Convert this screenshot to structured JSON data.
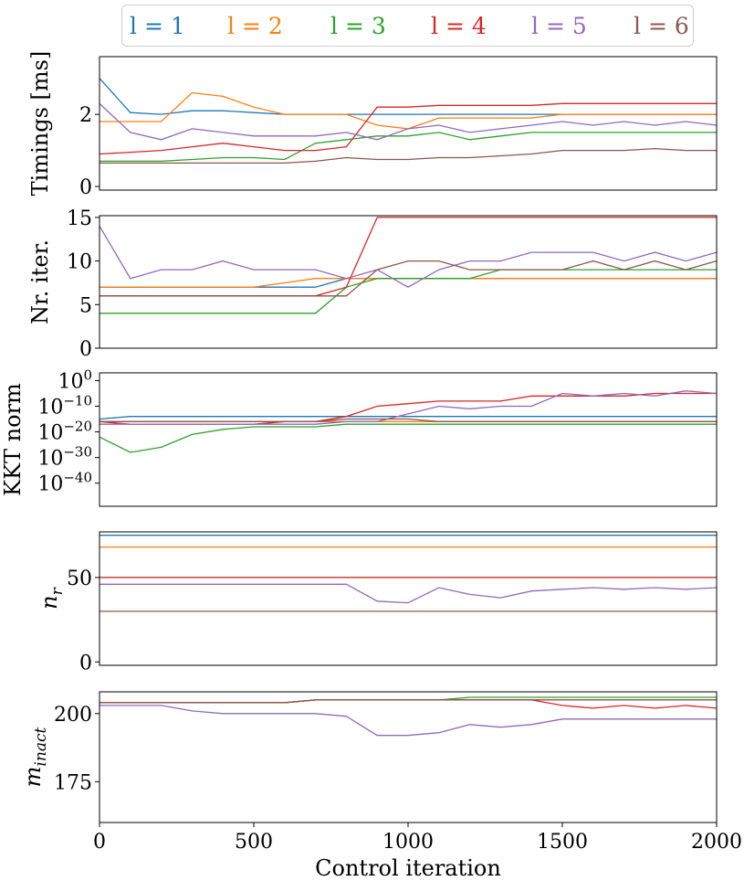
{
  "legend": {
    "placement": "top-center",
    "entries": [
      {
        "label": "l = 1",
        "color": "#1f77b4"
      },
      {
        "label": "l = 2",
        "color": "#ff7f0e"
      },
      {
        "label": "l = 3",
        "color": "#2ca02c"
      },
      {
        "label": "l = 4",
        "color": "#d62728"
      },
      {
        "label": "l = 5",
        "color": "#9467bd"
      },
      {
        "label": "l = 6",
        "color": "#8c564b"
      }
    ]
  },
  "chart_data": [
    {
      "type": "line",
      "ylabel": "Timings [ms]",
      "xlim": [
        0,
        2000
      ],
      "ylim": [
        -0.1,
        3.6
      ],
      "yscale": "linear",
      "yticks": [
        {
          "v": 0,
          "label": "0"
        },
        {
          "v": 2,
          "label": "2"
        }
      ],
      "grid": false,
      "x": [
        0,
        100,
        200,
        300,
        400,
        500,
        600,
        700,
        800,
        900,
        1000,
        1100,
        1200,
        1300,
        1400,
        1500,
        1600,
        1700,
        1800,
        1900,
        2000
      ],
      "series": [
        {
          "name": "l = 1",
          "color": "#1f77b4",
          "values": [
            3.0,
            2.05,
            2.0,
            2.1,
            2.1,
            2.05,
            2.0,
            2.0,
            2.0,
            2.0,
            2.0,
            2.0,
            2.0,
            2.0,
            2.0,
            2.0,
            2.0,
            2.0,
            2.0,
            2.0,
            2.0
          ]
        },
        {
          "name": "l = 2",
          "color": "#ff7f0e",
          "values": [
            1.8,
            1.8,
            1.8,
            2.6,
            2.5,
            2.2,
            2.0,
            2.0,
            2.0,
            1.7,
            1.6,
            1.9,
            1.9,
            1.9,
            1.9,
            2.0,
            2.0,
            2.0,
            2.0,
            2.0,
            2.0
          ]
        },
        {
          "name": "l = 3",
          "color": "#2ca02c",
          "values": [
            0.7,
            0.7,
            0.7,
            0.75,
            0.8,
            0.8,
            0.75,
            1.2,
            1.3,
            1.4,
            1.4,
            1.5,
            1.3,
            1.4,
            1.5,
            1.5,
            1.5,
            1.5,
            1.5,
            1.5,
            1.5
          ]
        },
        {
          "name": "l = 4",
          "color": "#d62728",
          "values": [
            0.9,
            0.95,
            1.0,
            1.1,
            1.2,
            1.1,
            1.0,
            1.0,
            1.1,
            2.2,
            2.2,
            2.25,
            2.25,
            2.25,
            2.25,
            2.3,
            2.3,
            2.3,
            2.3,
            2.3,
            2.3
          ]
        },
        {
          "name": "l = 5",
          "color": "#9467bd",
          "values": [
            2.3,
            1.5,
            1.3,
            1.6,
            1.5,
            1.4,
            1.4,
            1.4,
            1.5,
            1.3,
            1.6,
            1.7,
            1.5,
            1.6,
            1.7,
            1.8,
            1.7,
            1.8,
            1.7,
            1.8,
            1.7
          ]
        },
        {
          "name": "l = 6",
          "color": "#8c564b",
          "values": [
            0.65,
            0.65,
            0.65,
            0.65,
            0.65,
            0.65,
            0.65,
            0.7,
            0.8,
            0.75,
            0.75,
            0.8,
            0.8,
            0.85,
            0.9,
            1.0,
            1.0,
            1.0,
            1.05,
            1.0,
            1.0
          ]
        }
      ]
    },
    {
      "type": "line",
      "ylabel": "Nr. iter.",
      "xlim": [
        0,
        2000
      ],
      "ylim": [
        0,
        15.2
      ],
      "yscale": "linear",
      "yticks": [
        {
          "v": 0,
          "label": "0"
        },
        {
          "v": 5,
          "label": "5"
        },
        {
          "v": 10,
          "label": "10"
        },
        {
          "v": 15,
          "label": "15"
        }
      ],
      "grid": false,
      "x": [
        0,
        100,
        200,
        300,
        400,
        500,
        600,
        700,
        800,
        900,
        1000,
        1100,
        1200,
        1300,
        1400,
        1500,
        1600,
        1700,
        1800,
        1900,
        2000
      ],
      "series": [
        {
          "name": "l = 1",
          "color": "#1f77b4",
          "values": [
            7,
            7,
            7,
            7,
            7,
            7,
            7,
            7,
            8,
            8,
            8,
            8,
            8,
            8,
            8,
            8,
            8,
            8,
            8,
            8,
            8
          ]
        },
        {
          "name": "l = 2",
          "color": "#ff7f0e",
          "values": [
            7,
            7,
            7,
            7,
            7,
            7,
            7.5,
            8,
            8,
            8,
            8,
            8,
            8,
            8,
            8,
            8,
            8,
            8,
            8,
            8,
            8
          ]
        },
        {
          "name": "l = 3",
          "color": "#2ca02c",
          "values": [
            4,
            4,
            4,
            4,
            4,
            4,
            4,
            4,
            7,
            8,
            8,
            8,
            8,
            9,
            9,
            9,
            9,
            9,
            9,
            9,
            9
          ]
        },
        {
          "name": "l = 4",
          "color": "#d62728",
          "values": [
            6,
            6,
            6,
            6,
            6,
            6,
            6,
            6,
            7,
            15,
            15,
            15,
            15,
            15,
            15,
            15,
            15,
            15,
            15,
            15,
            15
          ]
        },
        {
          "name": "l = 5",
          "color": "#9467bd",
          "values": [
            14,
            8,
            9,
            9,
            10,
            9,
            9,
            9,
            8,
            9,
            7,
            9,
            10,
            10,
            11,
            11,
            11,
            10,
            11,
            10,
            11
          ]
        },
        {
          "name": "l = 6",
          "color": "#8c564b",
          "values": [
            6,
            6,
            6,
            6,
            6,
            6,
            6,
            6,
            6,
            9,
            10,
            10,
            9,
            9,
            9,
            9,
            10,
            9,
            10,
            9,
            10
          ]
        }
      ]
    },
    {
      "type": "line",
      "ylabel": "KKT norm",
      "xlim": [
        0,
        2000
      ],
      "ylim": [
        -49,
        3
      ],
      "yscale": "log",
      "yticks": [
        {
          "v": 0,
          "label": "10^0"
        },
        {
          "v": -10,
          "label": "10^-10"
        },
        {
          "v": -20,
          "label": "10^-20"
        },
        {
          "v": -30,
          "label": "10^-30"
        },
        {
          "v": -40,
          "label": "10^-40"
        }
      ],
      "grid": false,
      "x": [
        0,
        100,
        200,
        300,
        400,
        500,
        600,
        700,
        800,
        900,
        1000,
        1100,
        1200,
        1300,
        1400,
        1500,
        1600,
        1700,
        1800,
        1900,
        2000
      ],
      "series": [
        {
          "name": "l = 1",
          "color": "#1f77b4",
          "values": [
            -15,
            -14,
            -14,
            -14,
            -14,
            -14,
            -14,
            -14,
            -14,
            -14,
            -14,
            -14,
            -14,
            -14,
            -14,
            -14,
            -14,
            -14,
            -14,
            -14,
            -14
          ]
        },
        {
          "name": "l = 2",
          "color": "#ff7f0e",
          "values": [
            -16,
            -16,
            -16,
            -16,
            -16,
            -16,
            -16,
            -16,
            -16,
            -16,
            -16,
            -16,
            -16,
            -16,
            -16,
            -16,
            -16,
            -16,
            -16,
            -16,
            -16
          ]
        },
        {
          "name": "l = 3",
          "color": "#2ca02c",
          "values": [
            -22,
            -28,
            -26,
            -21,
            -19,
            -18,
            -18,
            -18,
            -17,
            -17,
            -17,
            -17,
            -17,
            -17,
            -17,
            -17,
            -17,
            -17,
            -17,
            -17,
            -17
          ]
        },
        {
          "name": "l = 4",
          "color": "#d62728",
          "values": [
            -16,
            -17,
            -17,
            -17,
            -17,
            -17,
            -16,
            -16,
            -14,
            -10,
            -9,
            -8,
            -8,
            -8,
            -6,
            -6,
            -6,
            -6,
            -5,
            -5,
            -5
          ]
        },
        {
          "name": "l = 5",
          "color": "#9467bd",
          "values": [
            -17,
            -17,
            -17,
            -17,
            -17,
            -17,
            -17,
            -17,
            -16,
            -16,
            -13,
            -10,
            -11,
            -10,
            -10,
            -5,
            -6,
            -5,
            -6,
            -4,
            -5
          ]
        },
        {
          "name": "l = 6",
          "color": "#8c564b",
          "values": [
            -16,
            -16,
            -16,
            -16,
            -16,
            -16,
            -16,
            -16,
            -15,
            -15,
            -15,
            -16,
            -16,
            -16,
            -16,
            -16,
            -16,
            -16,
            -16,
            -16,
            -16
          ]
        }
      ]
    },
    {
      "type": "line",
      "ylabel": "n_r",
      "xlim": [
        0,
        2000
      ],
      "ylim": [
        -2,
        77
      ],
      "yscale": "linear",
      "yticks": [
        {
          "v": 0,
          "label": "0"
        },
        {
          "v": 50,
          "label": "50"
        }
      ],
      "grid": false,
      "x": [
        0,
        100,
        200,
        300,
        400,
        500,
        600,
        700,
        800,
        900,
        1000,
        1100,
        1200,
        1300,
        1400,
        1500,
        1600,
        1700,
        1800,
        1900,
        2000
      ],
      "series": [
        {
          "name": "l = 1",
          "color": "#1f77b4",
          "values": [
            75,
            75,
            75,
            75,
            75,
            75,
            75,
            75,
            75,
            75,
            75,
            75,
            75,
            75,
            75,
            75,
            75,
            75,
            75,
            75,
            75
          ]
        },
        {
          "name": "l = 2",
          "color": "#ff7f0e",
          "values": [
            68,
            68,
            68,
            68,
            68,
            68,
            68,
            68,
            68,
            68,
            68,
            68,
            68,
            68,
            68,
            68,
            68,
            68,
            68,
            68,
            68
          ]
        },
        {
          "name": "l = 3",
          "color": "#2ca02c",
          "values": [
            50,
            50,
            50,
            50,
            50,
            50,
            50,
            50,
            50,
            50,
            50,
            50,
            50,
            50,
            50,
            50,
            50,
            50,
            50,
            50,
            50
          ]
        },
        {
          "name": "l = 4",
          "color": "#d62728",
          "values": [
            50,
            50,
            50,
            50,
            50,
            50,
            50,
            50,
            50,
            50,
            50,
            50,
            50,
            50,
            50,
            50,
            50,
            50,
            50,
            50,
            50
          ]
        },
        {
          "name": "l = 5",
          "color": "#9467bd",
          "values": [
            46,
            46,
            46,
            46,
            46,
            46,
            46,
            46,
            46,
            36,
            35,
            44,
            40,
            38,
            42,
            43,
            44,
            43,
            44,
            43,
            44
          ]
        },
        {
          "name": "l = 6",
          "color": "#8c564b",
          "values": [
            30,
            30,
            30,
            30,
            30,
            30,
            30,
            30,
            30,
            30,
            30,
            30,
            30,
            30,
            30,
            30,
            30,
            30,
            30,
            30,
            30
          ]
        }
      ]
    },
    {
      "type": "line",
      "ylabel": "m_inact",
      "xlabel": "Control iteration",
      "xlim": [
        0,
        2000
      ],
      "ylim": [
        160,
        208
      ],
      "yscale": "linear",
      "yticks": [
        {
          "v": 175,
          "label": "175"
        },
        {
          "v": 200,
          "label": "200"
        }
      ],
      "xticks": [
        {
          "v": 0,
          "label": "0"
        },
        {
          "v": 500,
          "label": "500"
        },
        {
          "v": 1000,
          "label": "1000"
        },
        {
          "v": 1500,
          "label": "1500"
        },
        {
          "v": 2000,
          "label": "2000"
        }
      ],
      "grid": false,
      "x": [
        0,
        100,
        200,
        300,
        400,
        500,
        600,
        700,
        800,
        900,
        1000,
        1100,
        1200,
        1300,
        1400,
        1500,
        1600,
        1700,
        1800,
        1900,
        2000
      ],
      "series": [
        {
          "name": "l = 1",
          "color": "#1f77b4",
          "values": [
            204,
            204,
            204,
            204,
            204,
            204,
            204,
            205,
            205,
            205,
            205,
            205,
            205,
            205,
            205,
            205,
            205,
            205,
            205,
            205,
            205
          ]
        },
        {
          "name": "l = 2",
          "color": "#ff7f0e",
          "values": [
            204,
            204,
            204,
            204,
            204,
            204,
            204,
            205,
            205,
            205,
            205,
            205,
            205,
            205,
            205,
            205,
            205,
            205,
            205,
            205,
            205
          ]
        },
        {
          "name": "l = 3",
          "color": "#2ca02c",
          "values": [
            204,
            204,
            204,
            204,
            204,
            204,
            204,
            205,
            205,
            205,
            205,
            205,
            206,
            206,
            206,
            206,
            206,
            206,
            206,
            206,
            206
          ]
        },
        {
          "name": "l = 4",
          "color": "#d62728",
          "values": [
            204,
            204,
            204,
            204,
            204,
            204,
            204,
            205,
            205,
            205,
            205,
            205,
            205,
            205,
            205,
            203,
            202,
            203,
            202,
            203,
            202
          ]
        },
        {
          "name": "l = 5",
          "color": "#9467bd",
          "values": [
            203,
            203,
            203,
            201,
            200,
            200,
            200,
            200,
            199,
            192,
            192,
            193,
            196,
            195,
            196,
            198,
            198,
            198,
            198,
            198,
            198
          ]
        },
        {
          "name": "l = 6",
          "color": "#8c564b",
          "values": [
            204,
            204,
            204,
            204,
            204,
            204,
            204,
            205,
            205,
            205,
            205,
            205,
            205,
            205,
            205,
            205,
            205,
            205,
            205,
            205,
            205
          ]
        }
      ]
    }
  ]
}
